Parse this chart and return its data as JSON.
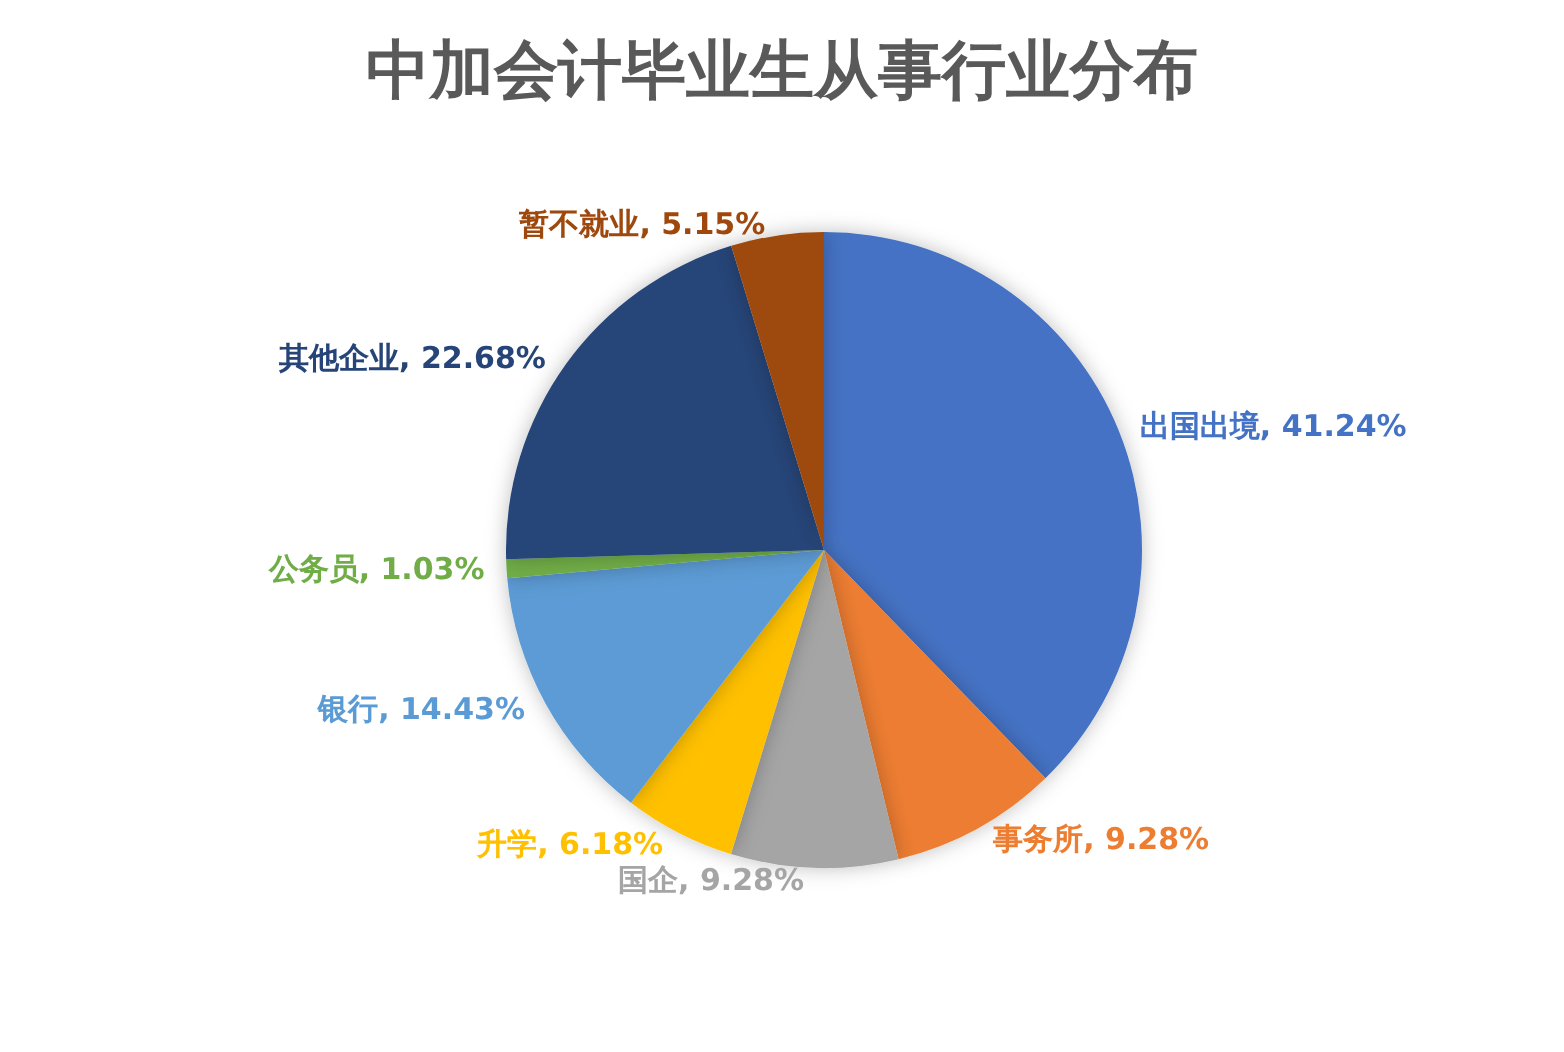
{
  "chart_data": {
    "type": "pie",
    "title": "中加会计毕业生从事行业分布",
    "categories": [
      "出国出境",
      "事务所",
      "国企",
      "升学",
      "银行",
      "公务员",
      "其他企业",
      "暂不就业"
    ],
    "values": [
      41.24,
      9.28,
      9.28,
      6.18,
      14.43,
      1.03,
      22.68,
      5.15
    ],
    "value_labels": [
      "41.24%",
      "9.28%",
      "9.28%",
      "6.18%",
      "14.43%",
      "1.03%",
      "22.68%",
      "5.15%"
    ],
    "colors": [
      "#4472c4",
      "#ed7d31",
      "#a5a5a5",
      "#ffc000",
      "#5b9bd5",
      "#70ad47",
      "#264478",
      "#9e480e"
    ],
    "legend": false
  }
}
